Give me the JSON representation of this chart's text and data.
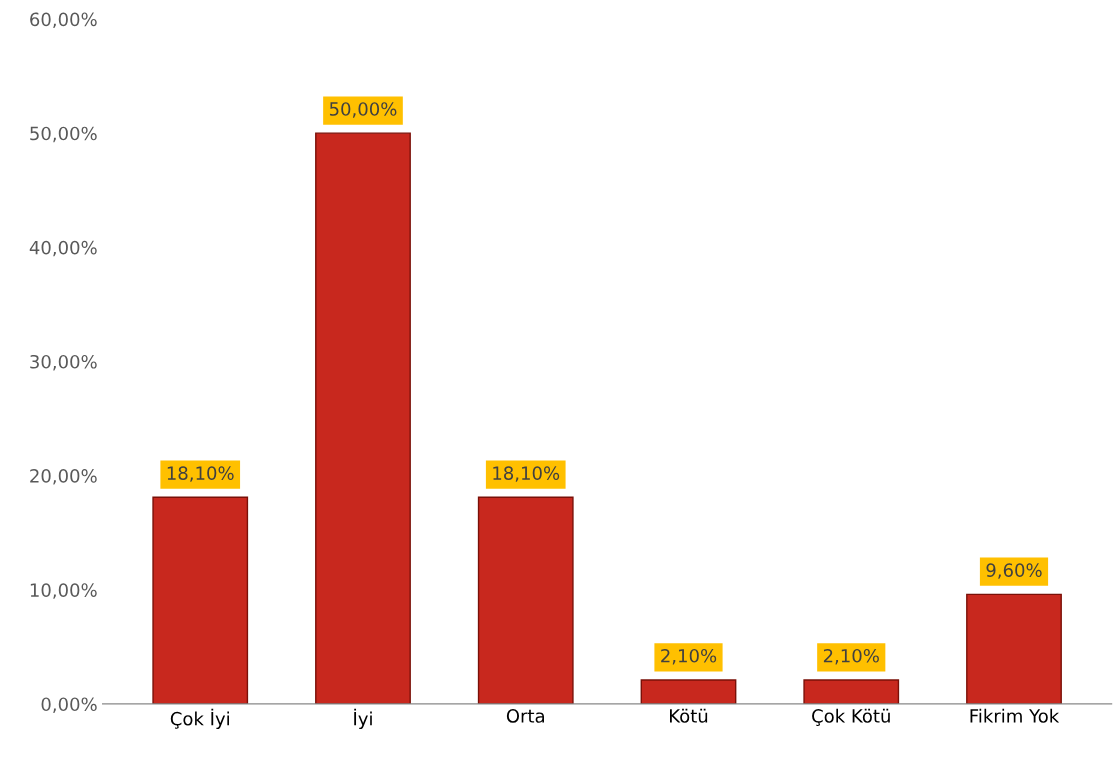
{
  "chart_data": {
    "type": "bar",
    "categories": [
      "Çok İyi",
      "İyi",
      "Orta",
      "Kötü",
      "Çok Kötü",
      "Fikrim Yok"
    ],
    "values": [
      18.1,
      50.0,
      18.1,
      2.1,
      2.1,
      9.6
    ],
    "value_labels": [
      "18,10%",
      "50,00%",
      "18,10%",
      "2,10%",
      "2,10%",
      "9,60%"
    ],
    "color": "#c8281e",
    "ylim": [
      0,
      60
    ],
    "yticks": [
      {
        "value": 0,
        "label": "0,00%"
      },
      {
        "value": 10,
        "label": "10,00%"
      },
      {
        "value": 20,
        "label": "20,00%"
      },
      {
        "value": 30,
        "label": "30,00%"
      },
      {
        "value": 40,
        "label": "40,00%"
      },
      {
        "value": 50,
        "label": "50,00%"
      },
      {
        "value": 60,
        "label": "60,00%"
      }
    ],
    "grid": false
  }
}
